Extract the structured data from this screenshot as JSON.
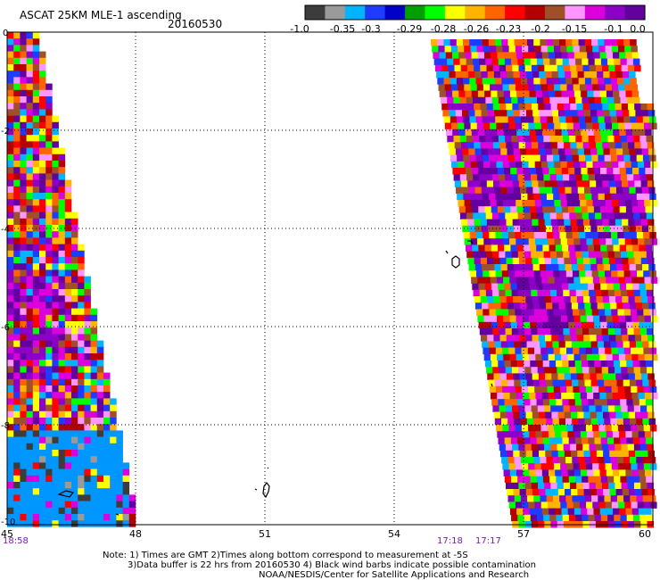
{
  "header": {
    "title": "ASCAT 25KM MLE-1 ascending",
    "date": "20160530"
  },
  "colorbar": {
    "colors": [
      "#3c3c3c",
      "#9a9a9a",
      "#00b4ff",
      "#1e3cff",
      "#0000c8",
      "#00a000",
      "#00ff00",
      "#ffff00",
      "#ffb400",
      "#ff6400",
      "#ff0000",
      "#b40000",
      "#a05028",
      "#ff96ff",
      "#dc00dc",
      "#8c00c8",
      "#6400a0"
    ],
    "labels": [
      "-1.0",
      "-0.35",
      "-0.3",
      "-0.29",
      "-0.28",
      "-0.26",
      "-0.23",
      "-0.2",
      "-0.15",
      "-0.1",
      "0.0"
    ]
  },
  "axes": {
    "x_ticks": [
      "45",
      "48",
      "51",
      "54",
      "57",
      "60"
    ],
    "y_ticks": [
      "0",
      "-2",
      "-4",
      "-6",
      "-8",
      "-10"
    ]
  },
  "time_labels": {
    "left": "18:58",
    "right_a": "17:18",
    "right_b": "17:17"
  },
  "notes": {
    "line1": "Note: 1) Times are GMT 2)Times along bottom correspond to measurement at -5S",
    "line2": "3)Data buffer is 22 hrs from 20160530 4) Black wind barbs indicate possible contamination",
    "line3": "NOAA/NESDIS/Center for Satellite Applications and Research"
  }
}
